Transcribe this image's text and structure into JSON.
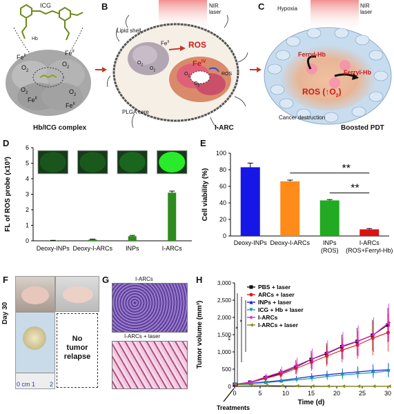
{
  "panels": {
    "A": {
      "letter": "A",
      "icg": "ICG",
      "hb": "Hb",
      "fe": "Fe",
      "fe_sup": "II",
      "o2": "O",
      "o2_sub": "2",
      "caption": "Hb/ICG complex"
    },
    "B": {
      "letter": "B",
      "nir": "NIR",
      "nir2": "laser",
      "lipid": "Lipid shell",
      "plga": "PLGA core",
      "ros": "ROS",
      "fe_iv": "Fe",
      "fe_iv_sup": "IV",
      "fe_ii": "Fe",
      "fe_ii_sup": "II",
      "ros_small": "ROS",
      "o2": "O",
      "o2_sub": "2",
      "caption": "I-ARC"
    },
    "C": {
      "letter": "C",
      "hypoxia": "Hypoxia",
      "nir": "NIR",
      "nir2": "laser",
      "ferryl1": "Ferryl-Hb",
      "ferryl2": "Ferryl-Hb",
      "ros": "ROS (↑O",
      "ros_sub": "2",
      "ros_end": ")",
      "destruction": "Cancer destruction",
      "caption": "Boosted PDT"
    },
    "D": {
      "letter": "D"
    },
    "E": {
      "letter": "E",
      "sig1": "**",
      "sig2": "**"
    },
    "F": {
      "letter": "F",
      "day": "Day 30",
      "no_relapse_1": "No",
      "no_relapse_2": "tumor",
      "no_relapse_3": "relapse",
      "ruler_0": "0",
      "ruler_cm": "cm",
      "ruler_1": "1",
      "ruler_2": "2"
    },
    "G": {
      "letter": "G",
      "top": "I-ARCs",
      "bottom": "I-ARCs + laser"
    },
    "H": {
      "letter": "H",
      "treatments": "Treatments",
      "sig_a": "**",
      "sig_b": "*",
      "sig_c": "*"
    }
  },
  "chart_data": [
    {
      "panel": "D",
      "type": "bar",
      "ylabel": "FL of ROS probe (x10³)",
      "ylim": [
        0,
        6
      ],
      "yticks": [
        0,
        1,
        2,
        3,
        4,
        5,
        6
      ],
      "categories": [
        "Deoxy-INPs",
        "Deoxy-I-ARCs",
        "INPs",
        "I-ARCs"
      ],
      "values": [
        0.02,
        0.08,
        0.3,
        3.1
      ],
      "errors": [
        0.01,
        0.03,
        0.05,
        0.1
      ],
      "color": "#2e8b1e"
    },
    {
      "panel": "E",
      "type": "bar",
      "ylabel": "Cell viability (%)",
      "ylim": [
        0,
        100
      ],
      "yticks": [
        0,
        20,
        40,
        60,
        80,
        100
      ],
      "categories": [
        "Deoxy-INPs",
        "Deoxy-I-ARCs",
        "INPs\n(ROS)",
        "I-ARCs\n(ROS+Ferryl-Hb)"
      ],
      "values": [
        83,
        66,
        43,
        8
      ],
      "errors": [
        5,
        1.5,
        1,
        1
      ],
      "colors": [
        "#1616e6",
        "#ff8c1a",
        "#22aa22",
        "#dd1111"
      ]
    },
    {
      "panel": "H",
      "type": "line",
      "xlabel": "Time (d)",
      "ylabel": "Tumor volume (mm³)",
      "xlim": [
        0,
        30
      ],
      "ylim": [
        0,
        3000
      ],
      "xticks": [
        0,
        5,
        10,
        15,
        20,
        25,
        30
      ],
      "yticks": [
        0,
        500,
        1000,
        1500,
        2000,
        2500,
        3000
      ],
      "ytick_labels": [
        "0",
        "500",
        "1,000",
        "1,500",
        "2,000",
        "2,500",
        "3,000"
      ],
      "x": [
        0,
        3,
        6,
        9,
        12,
        15,
        18,
        21,
        24,
        27,
        30
      ],
      "series": [
        {
          "name": "PBS + laser",
          "color": "#111111",
          "marker": "square",
          "values": [
            60,
            120,
            250,
            380,
            560,
            780,
            950,
            1150,
            1300,
            1480,
            1780
          ],
          "err": [
            20,
            40,
            80,
            120,
            200,
            250,
            300,
            350,
            400,
            450,
            500
          ]
        },
        {
          "name": "ARCs + laser",
          "color": "#e01d1d",
          "marker": "circle",
          "values": [
            60,
            110,
            230,
            350,
            520,
            700,
            880,
            1050,
            1200,
            1400,
            1560
          ],
          "err": [
            20,
            40,
            80,
            120,
            180,
            250,
            300,
            350,
            400,
            500,
            550
          ]
        },
        {
          "name": "INPs + laser",
          "color": "#1a1ae0",
          "marker": "triangle",
          "values": [
            60,
            90,
            130,
            170,
            230,
            290,
            340,
            380,
            420,
            460,
            480
          ],
          "err": [
            10,
            20,
            40,
            60,
            80,
            100,
            120,
            140,
            160,
            180,
            200
          ]
        },
        {
          "name": "ICG + Hb + laser",
          "color": "#1c9fa0",
          "marker": "tri-down",
          "values": [
            60,
            80,
            110,
            150,
            190,
            230,
            290,
            330,
            370,
            400,
            450
          ],
          "err": [
            10,
            20,
            30,
            50,
            70,
            90,
            110,
            130,
            150,
            170,
            190
          ]
        },
        {
          "name": "I-ARCs",
          "color": "#e020e0",
          "marker": "diamond",
          "values": [
            60,
            130,
            280,
            420,
            610,
            800,
            980,
            1180,
            1320,
            1500,
            1850
          ],
          "err": [
            20,
            50,
            90,
            150,
            220,
            300,
            350,
            400,
            450,
            500,
            550
          ]
        },
        {
          "name": "I-ARCs + laser",
          "color": "#8a8a18",
          "marker": "tri-left",
          "values": [
            50,
            40,
            30,
            20,
            15,
            10,
            8,
            5,
            5,
            5,
            5
          ],
          "err": [
            5,
            5,
            5,
            5,
            5,
            5,
            5,
            5,
            5,
            5,
            5
          ]
        }
      ]
    }
  ]
}
